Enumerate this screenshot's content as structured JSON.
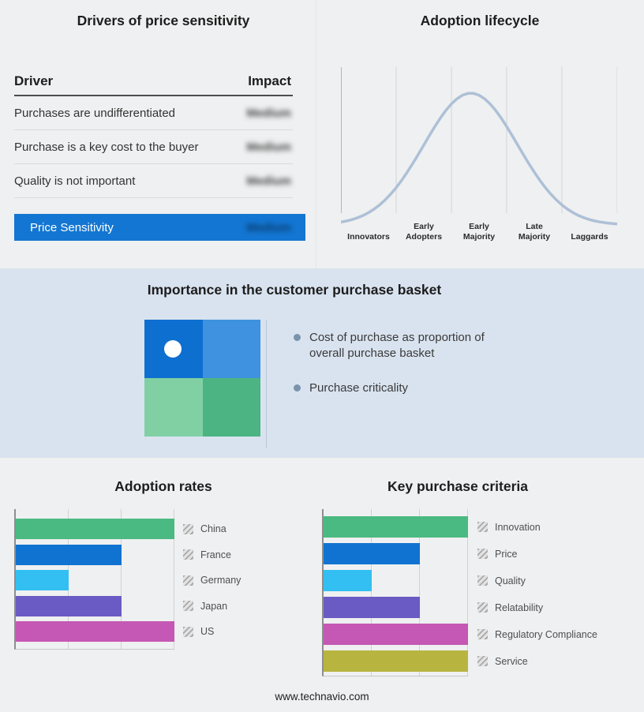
{
  "drivers": {
    "title": "Drivers of price sensitivity",
    "header": {
      "driver": "Driver",
      "impact": "Impact"
    },
    "rows": [
      {
        "driver": "Purchases are undifferentiated",
        "impact": "Medium"
      },
      {
        "driver": "Purchase is a key cost to the buyer",
        "impact": "Medium"
      },
      {
        "driver": "Quality is not important",
        "impact": "Medium"
      }
    ],
    "impact_values_blurred": true,
    "highlight": {
      "label": "Price Sensitivity",
      "impact": "Medium",
      "color": "#1376d2"
    }
  },
  "basket": {
    "title": "Importance in the customer purchase basket",
    "bullets": [
      "Cost of purchase as proportion of overall purchase basket",
      "Purchase criticality"
    ],
    "quadrant_colors": [
      "#0d6fd0",
      "#3e92e0",
      "#80d0a4",
      "#4cb482"
    ],
    "marker_quadrant": 0,
    "marker_color": "#ffffff",
    "bullet_color": "#7b93ad"
  },
  "footer": {
    "url": "www.technavio.com"
  },
  "chart_data": [
    {
      "type": "line",
      "title": "Adoption lifecycle",
      "categories": [
        "Innovators",
        "Early Adopters",
        "Early Majority",
        "Late Majority",
        "Laggards"
      ],
      "shape": "bell-curve",
      "peak_category": "Early Majority",
      "curve_color": "#aec0d6",
      "grid": true
    },
    {
      "type": "bar",
      "orientation": "horizontal",
      "title": "Adoption rates",
      "categories": [
        "China",
        "France",
        "Germany",
        "Japan",
        "US"
      ],
      "values": [
        3,
        2,
        1,
        2,
        3
      ],
      "xlim": [
        0,
        3
      ],
      "colors": [
        "#4aba82",
        "#1173d1",
        "#33bff1",
        "#6a5bc4",
        "#c558b4"
      ],
      "legend_position": "right"
    },
    {
      "type": "bar",
      "orientation": "horizontal",
      "title": "Key purchase criteria",
      "categories": [
        "Innovation",
        "Price",
        "Quality",
        "Relatability",
        "Regulatory Compliance",
        "Service"
      ],
      "values": [
        3,
        2,
        1,
        2,
        3,
        3
      ],
      "xlim": [
        0,
        3
      ],
      "colors": [
        "#4aba82",
        "#1173d1",
        "#33bff1",
        "#6a5bc4",
        "#c558b4",
        "#b7b540"
      ],
      "legend_position": "right"
    }
  ]
}
